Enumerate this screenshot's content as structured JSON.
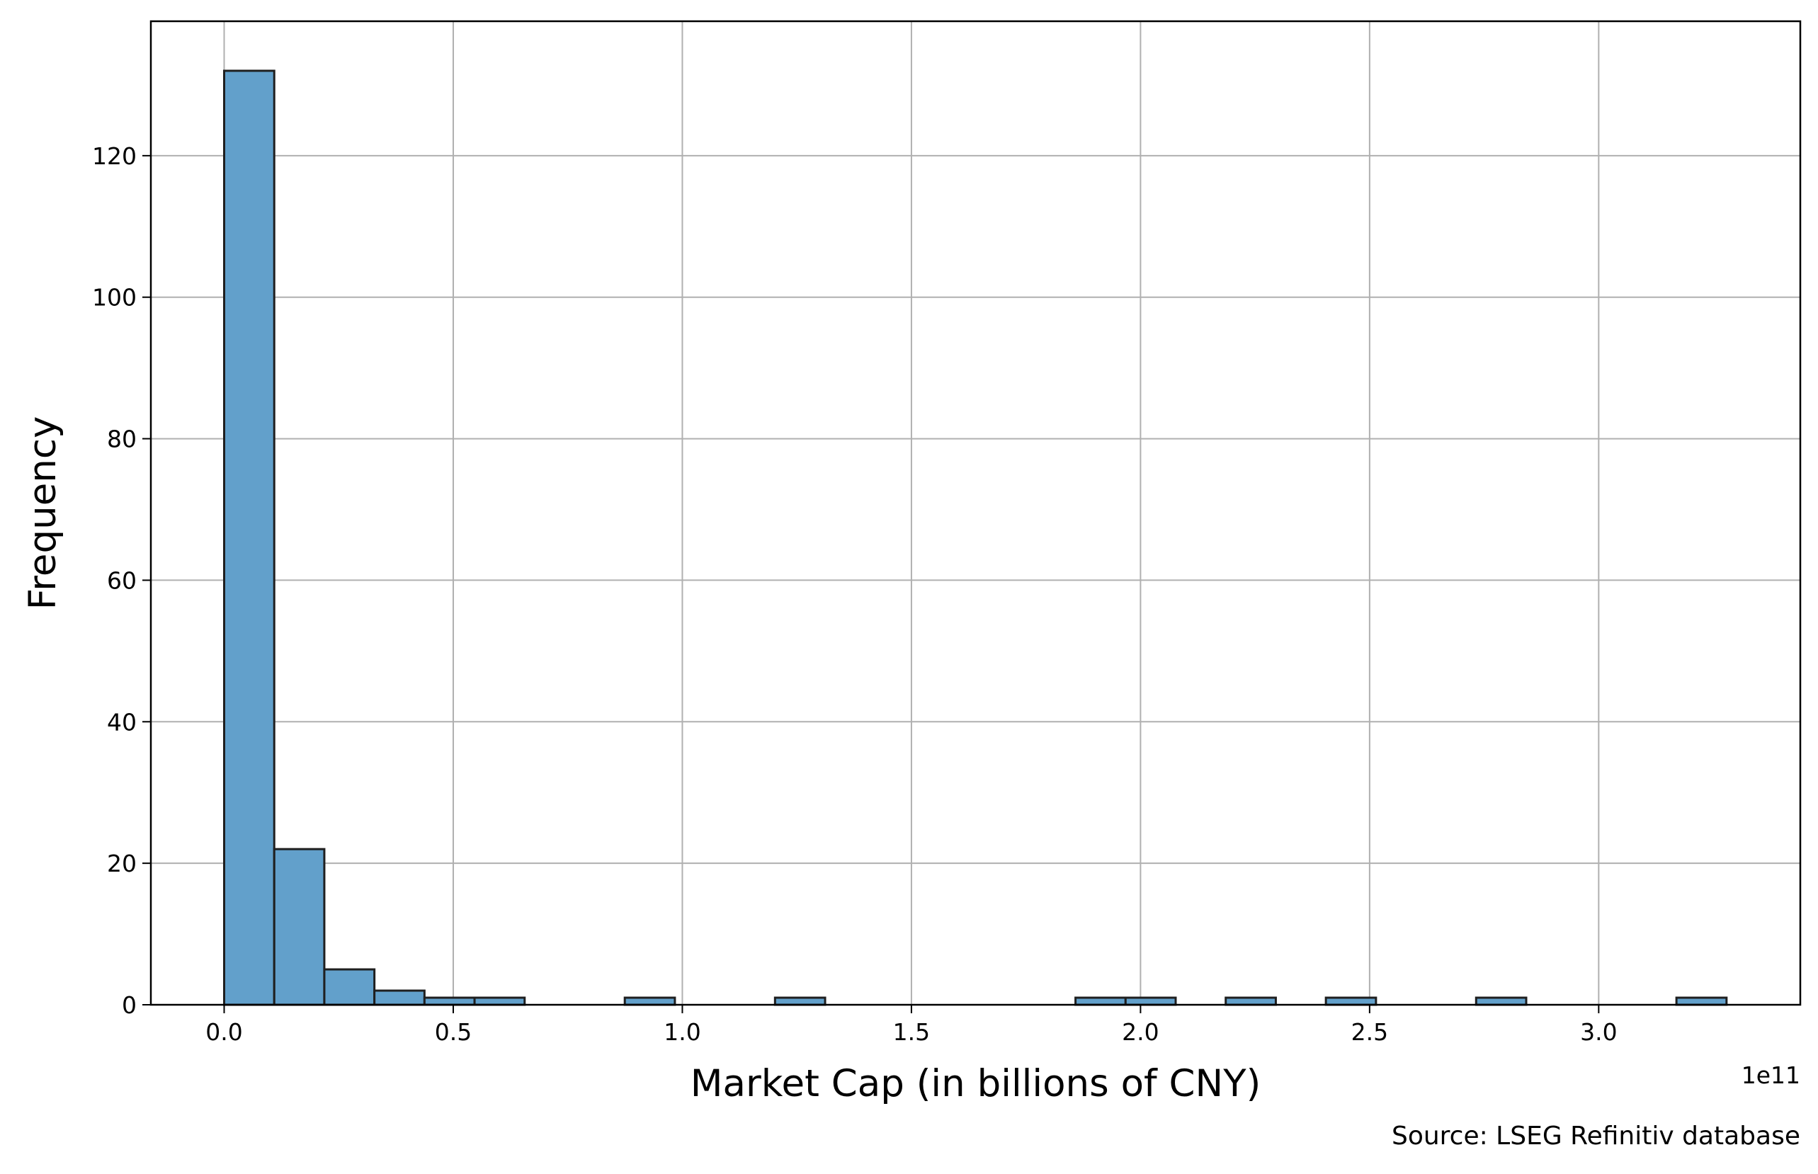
{
  "chart_data": {
    "type": "bar",
    "title": "",
    "xlabel": "Market Cap (in billions of CNY)",
    "ylabel": "Frequency",
    "x_offset_label": "1e11",
    "source_note": "Source: LSEG Refinitiv database",
    "bar_color": "#62a0cb",
    "edge_color": "#1f1f1f",
    "grid": true,
    "grid_color": "#b0b0b0",
    "xlim": [
      -0.16,
      3.44
    ],
    "ylim": [
      0,
      139
    ],
    "xticks": [
      0.0,
      0.5,
      1.0,
      1.5,
      2.0,
      2.5,
      3.0
    ],
    "xtick_labels": [
      "0.0",
      "0.5",
      "1.0",
      "1.5",
      "2.0",
      "2.5",
      "3.0"
    ],
    "yticks": [
      0,
      20,
      40,
      60,
      80,
      100,
      120
    ],
    "ytick_labels": [
      "0",
      "20",
      "40",
      "60",
      "80",
      "100",
      "120"
    ],
    "bin_start": 0.0,
    "bin_width": 0.1093,
    "counts": [
      132,
      22,
      5,
      2,
      1,
      1,
      0,
      0,
      1,
      0,
      0,
      1,
      0,
      0,
      0,
      0,
      0,
      1,
      1,
      0,
      1,
      0,
      1,
      0,
      0,
      1,
      0,
      0,
      0,
      1
    ]
  }
}
